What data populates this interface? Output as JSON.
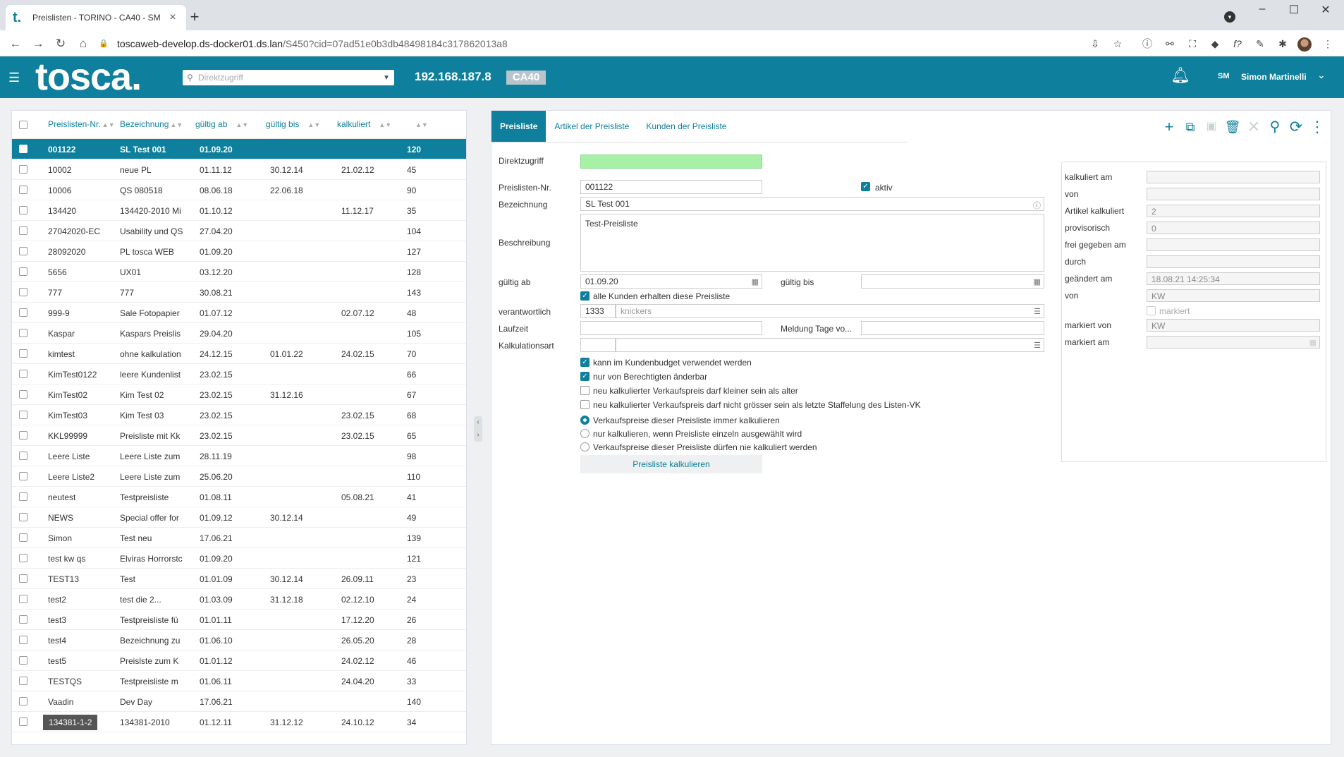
{
  "browser": {
    "tab_title": "Preislisten - TORINO - CA40 - SM",
    "tab_logo": "t.",
    "url_host": "toscaweb-develop.ds-docker01.ds.lan",
    "url_path": "/S450?cid=07ad51e0b3db48498184c317862013a8"
  },
  "header": {
    "brand": "tosca.",
    "search_placeholder": "Direktzugriff",
    "ip": "192.168.187.8",
    "client": "CA40",
    "user_initials": "SM",
    "user_name": "Simon Martinelli"
  },
  "list": {
    "columns": [
      "Preislisten-Nr.",
      "Bezeichnung",
      "gültig ab",
      "gültig bis",
      "kalkuliert",
      ""
    ],
    "rows": [
      {
        "nr": "001122",
        "bez": "SL Test 001",
        "ab": "01.09.20",
        "bis": "",
        "kalk": "",
        "id": "120",
        "selected": true
      },
      {
        "nr": "10002",
        "bez": "neue PL",
        "ab": "01.11.12",
        "bis": "30.12.14",
        "kalk": "21.02.12",
        "id": "45"
      },
      {
        "nr": "10006",
        "bez": "QS 080518",
        "ab": "08.06.18",
        "bis": "22.06.18",
        "kalk": "",
        "id": "90"
      },
      {
        "nr": "134420",
        "bez": "134420-2010 Mi",
        "ab": "01.10.12",
        "bis": "",
        "kalk": "11.12.17",
        "id": "35"
      },
      {
        "nr": "27042020-EC",
        "bez": "Usability und QS",
        "ab": "27.04.20",
        "bis": "",
        "kalk": "",
        "id": "104"
      },
      {
        "nr": "28092020",
        "bez": "PL tosca WEB",
        "ab": "01.09.20",
        "bis": "",
        "kalk": "",
        "id": "127"
      },
      {
        "nr": "5656",
        "bez": "UX01",
        "ab": "03.12.20",
        "bis": "",
        "kalk": "",
        "id": "128"
      },
      {
        "nr": "777",
        "bez": "777",
        "ab": "30.08.21",
        "bis": "",
        "kalk": "",
        "id": "143"
      },
      {
        "nr": "999-9",
        "bez": "Sale Fotopapier",
        "ab": "01.07.12",
        "bis": "",
        "kalk": "02.07.12",
        "id": "48"
      },
      {
        "nr": "Kaspar",
        "bez": "Kaspars Preislis",
        "ab": "29.04.20",
        "bis": "",
        "kalk": "",
        "id": "105"
      },
      {
        "nr": "kimtest",
        "bez": "ohne kalkulation",
        "ab": "24.12.15",
        "bis": "01.01.22",
        "kalk": "24.02.15",
        "id": "70"
      },
      {
        "nr": "KimTest0122",
        "bez": "leere Kundenlist",
        "ab": "23.02.15",
        "bis": "",
        "kalk": "",
        "id": "66"
      },
      {
        "nr": "KimTest02",
        "bez": "Kim Test 02",
        "ab": "23.02.15",
        "bis": "31.12.16",
        "kalk": "",
        "id": "67"
      },
      {
        "nr": "KimTest03",
        "bez": "Kim Test 03",
        "ab": "23.02.15",
        "bis": "",
        "kalk": "23.02.15",
        "id": "68"
      },
      {
        "nr": "KKL99999",
        "bez": "Preisliste mit Kk",
        "ab": "23.02.15",
        "bis": "",
        "kalk": "23.02.15",
        "id": "65"
      },
      {
        "nr": "Leere Liste",
        "bez": "Leere Liste zum",
        "ab": "28.11.19",
        "bis": "",
        "kalk": "",
        "id": "98"
      },
      {
        "nr": "Leere Liste2",
        "bez": "Leere Liste zum",
        "ab": "25.06.20",
        "bis": "",
        "kalk": "",
        "id": "110"
      },
      {
        "nr": "neutest",
        "bez": "Testpreisliste",
        "ab": "01.08.11",
        "bis": "",
        "kalk": "05.08.21",
        "id": "41"
      },
      {
        "nr": "NEWS",
        "bez": "Special offer for",
        "ab": "01.09.12",
        "bis": "30.12.14",
        "kalk": "",
        "id": "49"
      },
      {
        "nr": "Simon",
        "bez": "Test neu",
        "ab": "17.06.21",
        "bis": "",
        "kalk": "",
        "id": "139"
      },
      {
        "nr": "test kw qs",
        "bez": "Elviras Horrorstc",
        "ab": "01.09.20",
        "bis": "",
        "kalk": "",
        "id": "121"
      },
      {
        "nr": "TEST13",
        "bez": "Test",
        "ab": "01.01.09",
        "bis": "30.12.14",
        "kalk": "26.09.11",
        "id": "23"
      },
      {
        "nr": "test2",
        "bez": "test die 2...",
        "ab": "01.03.09",
        "bis": "31.12.18",
        "kalk": "02.12.10",
        "id": "24"
      },
      {
        "nr": "test3",
        "bez": "Testpreisliste fü",
        "ab": "01.01.11",
        "bis": "",
        "kalk": "17.12.20",
        "id": "26"
      },
      {
        "nr": "test4",
        "bez": "Bezeichnung zu",
        "ab": "01.06.10",
        "bis": "",
        "kalk": "26.05.20",
        "id": "28"
      },
      {
        "nr": "test5",
        "bez": "Preislste zum K",
        "ab": "01.01.12",
        "bis": "",
        "kalk": "24.02.12",
        "id": "46"
      },
      {
        "nr": "TESTQS",
        "bez": "Testpreisliste m",
        "ab": "01.06.11",
        "bis": "",
        "kalk": "24.04.20",
        "id": "33"
      },
      {
        "nr": "Vaadin",
        "bez": "Dev Day",
        "ab": "17.06.21",
        "bis": "",
        "kalk": "",
        "id": "140"
      },
      {
        "nr": "134381-1-2",
        "bez": "134381-2010",
        "ab": "01.12.11",
        "bis": "31.12.12",
        "kalk": "24.10.12",
        "id": "34",
        "badge": true
      }
    ]
  },
  "detail": {
    "tabs": [
      "Preisliste",
      "Artikel der Preisliste",
      "Kunden der Preisliste"
    ],
    "form": {
      "direktzugriff_label": "Direktzugriff",
      "nr_label": "Preislisten-Nr.",
      "nr_value": "001122",
      "aktiv_label": "aktiv",
      "bez_label": "Bezeichnung",
      "bez_value": "SL Test 001",
      "beschreibung_label": "Beschreibung",
      "beschreibung_value": "Test-Preisliste",
      "gueltig_ab_label": "gültig ab",
      "gueltig_ab_value": "01.09.20",
      "gueltig_bis_label": "gültig bis",
      "alle_kunden_label": "alle Kunden erhalten diese Preisliste",
      "verantwortlich_label": "verantwortlich",
      "verantwortlich_code": "1333",
      "verantwortlich_name": "knickers",
      "laufzeit_label": "Laufzeit",
      "meldung_label": "Meldung Tage vo...",
      "kalkulationsart_label": "Kalkulationsart",
      "opt1": "kann im Kundenbudget verwendet werden",
      "opt2": "nur von Berechtigten änderbar",
      "opt3": "neu kalkulierter Verkaufspreis darf kleiner sein als alter",
      "opt4": "neu kalkulierter Verkaufspreis darf nicht grösser sein als letzte Staffelung des Listen-VK",
      "radio1": "Verkaufspreise dieser Preisliste immer kalkulieren",
      "radio2": "nur kalkulieren, wenn Preisliste einzeln ausgewählt wird",
      "radio3": "Verkaufspreise dieser Preisliste dürfen nie kalkuliert werden",
      "calc_button": "Preisliste kalkulieren"
    },
    "side": {
      "kalkuliert_am": "kalkuliert am",
      "von1": "von",
      "artikel_kalkuliert": "Artikel kalkuliert",
      "artikel_kalkuliert_value": "2",
      "provisorisch": "provisorisch",
      "provisorisch_value": "0",
      "frei_gegeben_am": "frei gegeben am",
      "durch": "durch",
      "geaendert_am": "geändert am",
      "geaendert_am_value": "18.08.21 14:25:34",
      "von2": "von",
      "von2_value": "KW",
      "markiert": "markiert",
      "markiert_von": "markiert von",
      "markiert_von_value": "KW",
      "markiert_am": "markiert am"
    }
  },
  "colors": {
    "accent": "#0e7f9c",
    "green_field": "#a7f0a7"
  }
}
